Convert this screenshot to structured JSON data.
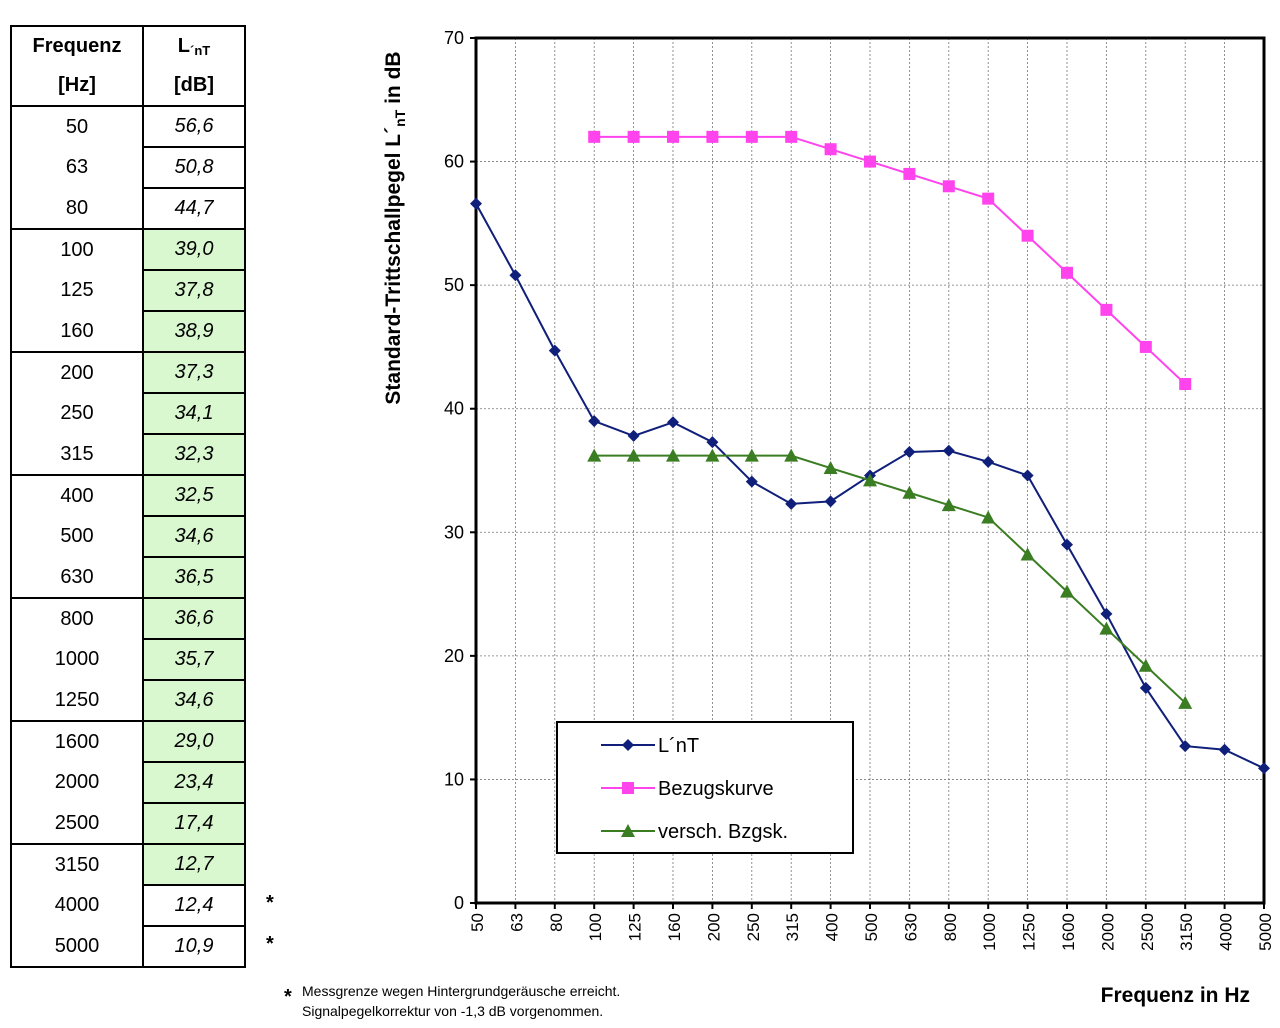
{
  "table": {
    "headers": {
      "col1_line1": "Frequenz",
      "col1_line2": "[Hz]",
      "col2_line1": "L",
      "col2_line1_sup": "´nT",
      "col2_line2": "[dB]"
    },
    "rows": [
      {
        "freq": "50",
        "value": "56,6"
      },
      {
        "freq": "63",
        "value": "50,8"
      },
      {
        "freq": "80",
        "value": "44,7"
      },
      {
        "freq": "100",
        "value": "39,0"
      },
      {
        "freq": "125",
        "value": "37,8"
      },
      {
        "freq": "160",
        "value": "38,9"
      },
      {
        "freq": "200",
        "value": "37,3"
      },
      {
        "freq": "250",
        "value": "34,1"
      },
      {
        "freq": "315",
        "value": "32,3"
      },
      {
        "freq": "400",
        "value": "32,5"
      },
      {
        "freq": "500",
        "value": "34,6"
      },
      {
        "freq": "630",
        "value": "36,5"
      },
      {
        "freq": "800",
        "value": "36,6"
      },
      {
        "freq": "1000",
        "value": "35,7"
      },
      {
        "freq": "1250",
        "value": "34,6"
      },
      {
        "freq": "1600",
        "value": "29,0"
      },
      {
        "freq": "2000",
        "value": "23,4"
      },
      {
        "freq": "2500",
        "value": "17,4"
      },
      {
        "freq": "3150",
        "value": "12,7"
      },
      {
        "freq": "4000",
        "value": "12,4"
      },
      {
        "freq": "5000",
        "value": "10,9"
      }
    ],
    "highlight_color": "#d9f8d0",
    "asterisk": "*"
  },
  "footnote": {
    "marker": "*",
    "line1": "Messgrenze wegen Hintergrundgeräusche erreicht.",
    "line2": "Signalpegelkorrektur von -1,3 dB vorgenommen."
  },
  "chart_data": {
    "type": "line",
    "xlabel": "Frequenz in Hz",
    "ylabel_main": "Standard-Trittschallpegel L´",
    "ylabel_sub": "nT",
    "ylabel_suffix": " in dB",
    "categories": [
      "50",
      "63",
      "80",
      "100",
      "125",
      "160",
      "200",
      "250",
      "315",
      "400",
      "500",
      "630",
      "800",
      "1000",
      "1250",
      "1600",
      "2000",
      "2500",
      "3150",
      "4000",
      "5000"
    ],
    "ylim": [
      0,
      70
    ],
    "yticks": [
      0,
      10,
      20,
      30,
      40,
      50,
      60,
      70
    ],
    "grid": true,
    "legend_position": "bottom-left",
    "series": [
      {
        "name": "L´nT",
        "color": "#0f1f7a",
        "marker": "diamond",
        "values": [
          56.6,
          50.8,
          44.7,
          39.0,
          37.8,
          38.9,
          37.3,
          34.1,
          32.3,
          32.5,
          34.6,
          36.5,
          36.6,
          35.7,
          34.6,
          29.0,
          23.4,
          17.4,
          12.7,
          12.4,
          10.9
        ]
      },
      {
        "name": "Bezugskurve",
        "color": "#ff44ee",
        "marker": "square",
        "values": [
          null,
          null,
          null,
          62,
          62,
          62,
          62,
          62,
          62,
          61,
          60,
          59,
          58,
          57,
          54,
          51,
          48,
          45,
          42,
          null,
          null
        ]
      },
      {
        "name": "versch. Bzgsk.",
        "color": "#3a7d22",
        "marker": "triangle",
        "values": [
          null,
          null,
          null,
          36.2,
          36.2,
          36.2,
          36.2,
          36.2,
          36.2,
          35.2,
          34.2,
          33.2,
          32.2,
          31.2,
          28.2,
          25.2,
          22.2,
          19.2,
          16.2,
          null,
          null
        ]
      }
    ]
  }
}
